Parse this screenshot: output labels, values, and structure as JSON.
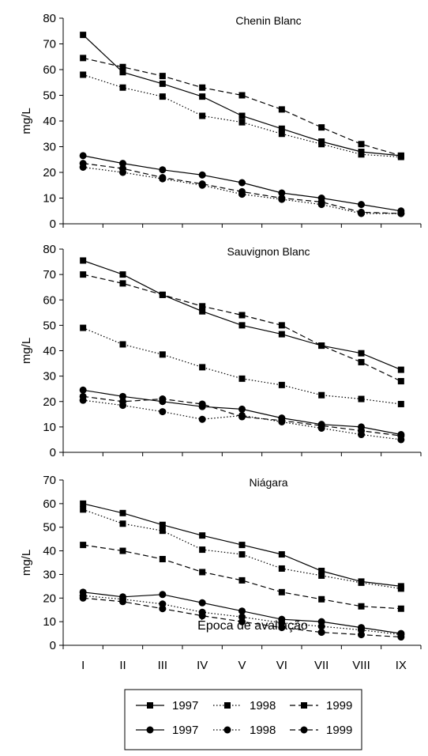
{
  "chart_data": [
    {
      "type": "line",
      "title": "Chenin Blanc",
      "ylabel": "mg/L",
      "ylim": [
        0,
        80
      ],
      "yticks": [
        0,
        10,
        20,
        30,
        40,
        50,
        60,
        70,
        80
      ],
      "categories": [
        "I",
        "II",
        "III",
        "IV",
        "V",
        "VI",
        "VII",
        "VIII",
        "IX"
      ],
      "series": [
        {
          "name": "1997",
          "marker": "square",
          "line": "solid",
          "values": [
            73.5,
            59,
            54.5,
            49.5,
            42,
            37,
            32,
            28,
            26.5
          ]
        },
        {
          "name": "1998",
          "marker": "square",
          "line": "dotted",
          "values": [
            58,
            53,
            49.5,
            42,
            39.5,
            35,
            31,
            27,
            26
          ]
        },
        {
          "name": "1999",
          "marker": "square",
          "line": "dashed",
          "values": [
            64.5,
            61,
            57.5,
            53,
            50,
            44.5,
            37.5,
            31,
            26.5
          ]
        },
        {
          "name": "1997",
          "marker": "circle",
          "line": "solid",
          "values": [
            26.5,
            23.5,
            21,
            19,
            16,
            12,
            10,
            7.5,
            5
          ]
        },
        {
          "name": "1998",
          "marker": "circle",
          "line": "dotted",
          "values": [
            22,
            20,
            17.5,
            15,
            11.5,
            9.5,
            7.5,
            4,
            4
          ]
        },
        {
          "name": "1999",
          "marker": "circle",
          "line": "dashed",
          "values": [
            23.5,
            21.5,
            18,
            15.5,
            12.5,
            10,
            8.5,
            4.5,
            4
          ]
        }
      ]
    },
    {
      "type": "line",
      "title": "Sauvignon Blanc",
      "ylabel": "mg/L",
      "ylim": [
        0,
        80
      ],
      "yticks": [
        0,
        10,
        20,
        30,
        40,
        50,
        60,
        70,
        80
      ],
      "categories": [
        "I",
        "II",
        "III",
        "IV",
        "V",
        "VI",
        "VII",
        "VIII",
        "IX"
      ],
      "series": [
        {
          "name": "1997",
          "marker": "square",
          "line": "solid",
          "values": [
            75.5,
            70,
            62,
            55.5,
            50,
            46.5,
            42,
            39,
            32.5
          ]
        },
        {
          "name": "1998",
          "marker": "square",
          "line": "dotted",
          "values": [
            49,
            42.5,
            38.5,
            33.5,
            29,
            26.5,
            22.5,
            21,
            19
          ]
        },
        {
          "name": "1999",
          "marker": "square",
          "line": "dashed",
          "values": [
            70,
            66.5,
            62,
            57.5,
            54,
            50,
            42,
            35.5,
            28
          ]
        },
        {
          "name": "1997",
          "marker": "circle",
          "line": "solid",
          "values": [
            24.5,
            22,
            20,
            18,
            17,
            13.5,
            11,
            10,
            7
          ]
        },
        {
          "name": "1998",
          "marker": "circle",
          "line": "dotted",
          "values": [
            20.5,
            18.5,
            16,
            13,
            14.5,
            12,
            9.5,
            7,
            5
          ]
        },
        {
          "name": "1999",
          "marker": "circle",
          "line": "dashed",
          "values": [
            22,
            20,
            21,
            19,
            14,
            12.5,
            10.5,
            8.5,
            6.5
          ]
        }
      ]
    },
    {
      "type": "line",
      "title": "Niágara",
      "ylabel": "mg/L",
      "ylim": [
        0,
        70
      ],
      "yticks": [
        0,
        10,
        20,
        30,
        40,
        50,
        60,
        70
      ],
      "categories": [
        "I",
        "II",
        "III",
        "IV",
        "V",
        "VI",
        "VII",
        "VIII",
        "IX"
      ],
      "xlabel": "Época de avaliação",
      "series": [
        {
          "name": "1997",
          "marker": "square",
          "line": "solid",
          "values": [
            60,
            56,
            51,
            46.5,
            42.5,
            38.5,
            31.5,
            27,
            25
          ]
        },
        {
          "name": "1998",
          "marker": "square",
          "line": "dotted",
          "values": [
            57.5,
            51.5,
            48.5,
            40.5,
            38.5,
            32.5,
            29.5,
            26.5,
            24
          ]
        },
        {
          "name": "1999",
          "marker": "square",
          "line": "dashed",
          "values": [
            42.5,
            40,
            36.5,
            31,
            27.5,
            22.5,
            19.5,
            16.5,
            15.5
          ]
        },
        {
          "name": "1997",
          "marker": "circle",
          "line": "solid",
          "values": [
            22.5,
            20.5,
            21.5,
            18,
            14.5,
            11,
            10,
            7.5,
            5
          ]
        },
        {
          "name": "1998",
          "marker": "circle",
          "line": "dotted",
          "values": [
            21,
            19.5,
            17.5,
            14,
            12,
            9.5,
            8,
            6.5,
            4.5
          ]
        },
        {
          "name": "1999",
          "marker": "circle",
          "line": "dashed",
          "values": [
            20,
            18.5,
            15.5,
            12.5,
            10,
            7.5,
            5.5,
            4.5,
            3.5
          ]
        }
      ]
    }
  ],
  "legend": {
    "placement": "bottom",
    "entries": [
      {
        "label": "1997",
        "marker": "square",
        "line": "solid"
      },
      {
        "label": "1998",
        "marker": "square",
        "line": "dotted"
      },
      {
        "label": "1999",
        "marker": "square",
        "line": "dashed"
      },
      {
        "label": "1997",
        "marker": "circle",
        "line": "solid"
      },
      {
        "label": "1998",
        "marker": "circle",
        "line": "dotted"
      },
      {
        "label": "1999",
        "marker": "circle",
        "line": "dashed"
      }
    ]
  }
}
